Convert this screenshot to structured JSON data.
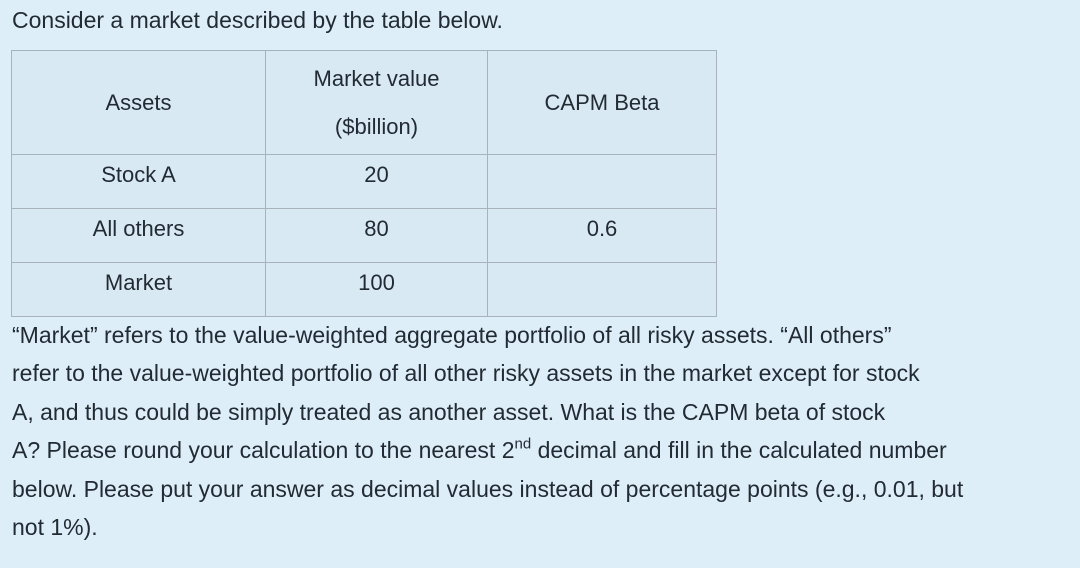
{
  "intro": "Consider a market described by the table below.",
  "table": {
    "headers": {
      "assets": "Assets",
      "market_value_line1": "Market value",
      "market_value_line2": "($billion)",
      "capm_beta": "CAPM Beta"
    },
    "rows": [
      {
        "asset": "Stock A",
        "market_value": "20",
        "beta": ""
      },
      {
        "asset": "All others",
        "market_value": "80",
        "beta": "0.6"
      },
      {
        "asset": "Market",
        "market_value": "100",
        "beta": ""
      }
    ]
  },
  "paragraph": {
    "line1": "“Market” refers to the value-weighted aggregate portfolio of all risky assets. “All others”",
    "line2": "refer to the value-weighted portfolio of all other risky assets in the market except for stock",
    "line3": "A, and thus could be simply treated as another asset. What is the CAPM beta of stock",
    "line4_before": "A? Please round your calculation to the nearest 2",
    "line4_sup": "nd",
    "line4_after": " decimal and fill in the calculated number",
    "line5": "below. Please put your answer as decimal values instead of percentage points (e.g., 0.01, but",
    "line6": "not 1%)."
  }
}
